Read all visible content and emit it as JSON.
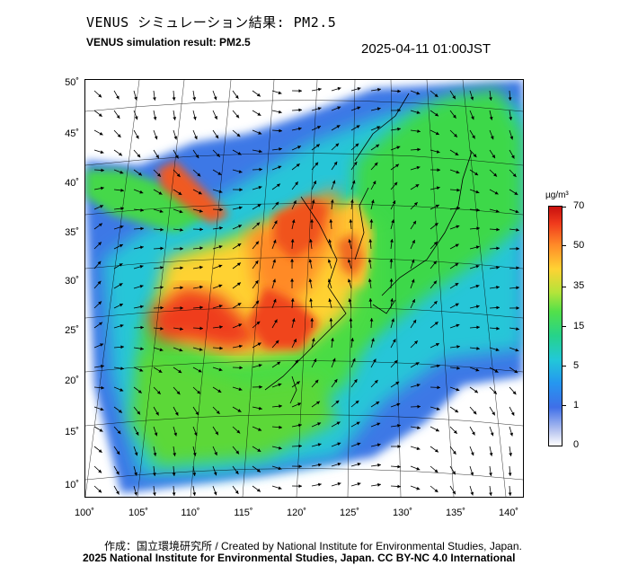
{
  "header": {
    "title_jp": "VENUS シミュレーション結果: PM2.5",
    "title_en": "VENUS simulation result: PM2.5",
    "timestamp": "2025-04-11 01:00JST"
  },
  "map": {
    "lat_labels": [
      "50˚",
      "45˚",
      "40˚",
      "35˚",
      "30˚",
      "25˚",
      "20˚",
      "15˚",
      "10˚"
    ],
    "lon_labels": [
      "100˚",
      "105˚",
      "110˚",
      "115˚",
      "120˚",
      "125˚",
      "130˚",
      "135˚",
      "140˚"
    ],
    "parameter": "PM2.5",
    "overlay": "wind-vector-arrows"
  },
  "colorbar": {
    "unit": "µg/m³",
    "labels": [
      "70",
      "50",
      "35",
      "15",
      "5",
      "1",
      "0"
    ],
    "colors": [
      "#c8100e",
      "#ff8a28",
      "#ffd233",
      "#52e04a",
      "#22c8d8",
      "#3f6fe8",
      "#ffffff"
    ]
  },
  "footer": {
    "credit_jp": "作成：国立環境研究所 / Created by National Institute for Environmental Studies, Japan.",
    "credit_en": "2025 National Institute for Environmental Studies, Japan. CC BY-NC 4.0 International"
  }
}
